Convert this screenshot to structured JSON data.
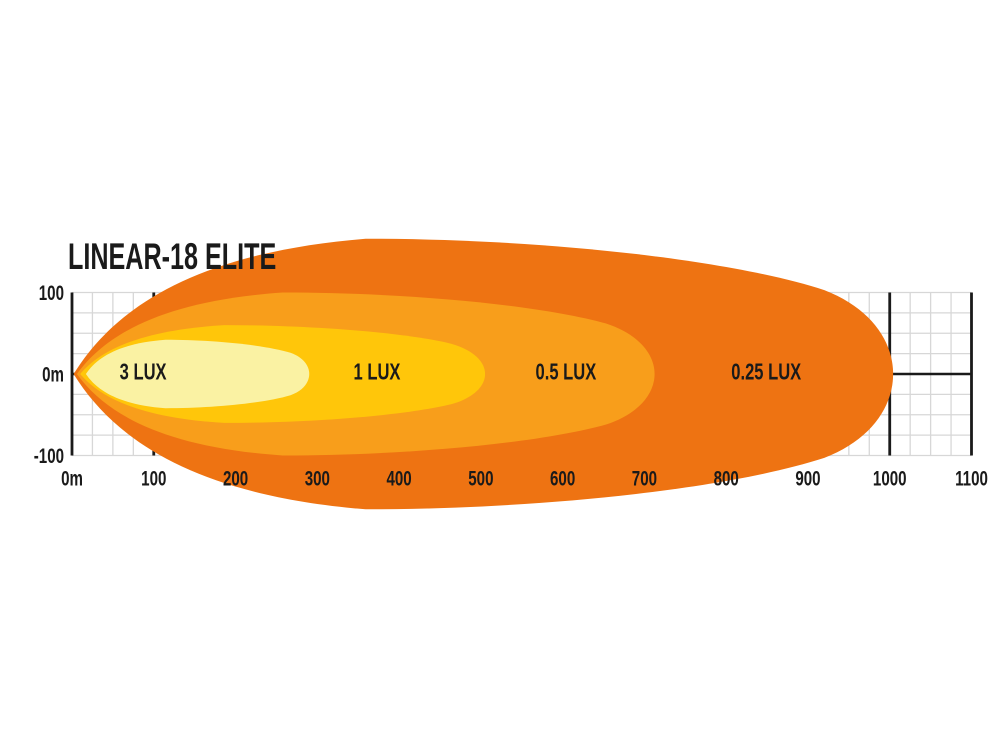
{
  "title": "LINEAR-18 ELITE",
  "colors": {
    "background": "#ffffff",
    "text": "#1a1a1a",
    "grid_minor": "#d7d7d7",
    "grid_major": "#1a1a1a"
  },
  "chart_data": {
    "type": "area",
    "title": "LINEAR-18 ELITE",
    "description": "Isolux beam-distance diagram for LED light bar: nested illuminance zones over distance in metres",
    "grid": "on",
    "x_axis": {
      "unit": "m",
      "min": 0,
      "max": 1100,
      "major_tick_step": 100,
      "minor_grid_step": 25,
      "tick_labels": [
        "0m",
        "100",
        "200",
        "300",
        "400",
        "500",
        "600",
        "700",
        "800",
        "900",
        "1000",
        "1100"
      ]
    },
    "y_axis": {
      "unit": "m",
      "min": -100,
      "max": 100,
      "minor_grid_step": 25,
      "tick_labels": [
        "100",
        "0m",
        "-100"
      ]
    },
    "zones": [
      {
        "label": "3 LUX",
        "reach_m": 295,
        "max_half_width_m": 21,
        "tip_offset_m": 17,
        "label_at_m": 87,
        "color": "#faf2a3"
      },
      {
        "label": "1 LUX",
        "reach_m": 514,
        "max_half_width_m": 30,
        "tip_offset_m": 10,
        "label_at_m": 373,
        "color": "#ffc60a"
      },
      {
        "label": "0.5 LUX",
        "reach_m": 725,
        "max_half_width_m": 50,
        "tip_offset_m": 6,
        "label_at_m": 604,
        "color": "#f89e1b"
      },
      {
        "label": "0.25 LUX",
        "reach_m": 1022,
        "max_half_width_m": 83,
        "tip_offset_m": 2,
        "label_at_m": 849,
        "color": "#ee7312"
      }
    ]
  }
}
